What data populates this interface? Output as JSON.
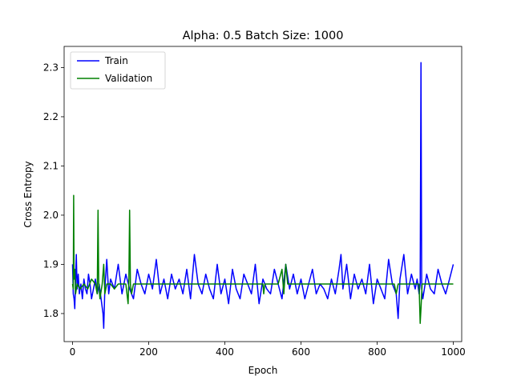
{
  "chart_data": {
    "type": "line",
    "title": "Alpha: 0.5 Batch Size: 1000",
    "xlabel": "Epoch",
    "ylabel": "Cross Entropy",
    "xlim": [
      -22,
      1022
    ],
    "ylim": [
      1.743,
      2.343
    ],
    "xticks": [
      0,
      200,
      400,
      600,
      800,
      1000
    ],
    "yticks": [
      1.8,
      1.9,
      2.0,
      2.1,
      2.2,
      2.3
    ],
    "xtick_labels": [
      "0",
      "200",
      "400",
      "600",
      "800",
      "1000"
    ],
    "ytick_labels": [
      "1.8",
      "1.9",
      "2.0",
      "2.1",
      "2.2",
      "2.3"
    ],
    "grid": false,
    "legend": "top-left",
    "series": [
      {
        "name": "Train",
        "color": "#0000ff",
        "x": [
          0,
          2,
          4,
          6,
          8,
          10,
          12,
          15,
          18,
          22,
          26,
          30,
          34,
          38,
          42,
          46,
          50,
          55,
          60,
          65,
          70,
          75,
          80,
          82,
          85,
          90,
          95,
          100,
          110,
          120,
          130,
          140,
          150,
          160,
          170,
          180,
          190,
          200,
          210,
          220,
          230,
          240,
          250,
          260,
          270,
          280,
          290,
          300,
          310,
          320,
          330,
          340,
          350,
          360,
          370,
          380,
          390,
          400,
          410,
          420,
          430,
          440,
          450,
          460,
          470,
          480,
          490,
          500,
          510,
          520,
          530,
          540,
          550,
          560,
          570,
          580,
          590,
          600,
          610,
          620,
          630,
          640,
          650,
          660,
          670,
          680,
          690,
          700,
          705,
          710,
          720,
          730,
          740,
          750,
          760,
          770,
          780,
          790,
          800,
          810,
          820,
          830,
          840,
          850,
          855,
          860,
          870,
          880,
          890,
          900,
          905,
          910,
          913,
          915,
          917,
          920,
          930,
          940,
          950,
          960,
          970,
          980,
          990,
          1000
        ],
        "y": [
          1.9,
          1.84,
          1.83,
          1.81,
          1.87,
          1.92,
          1.85,
          1.88,
          1.84,
          1.86,
          1.83,
          1.87,
          1.85,
          1.84,
          1.88,
          1.86,
          1.83,
          1.85,
          1.87,
          1.84,
          1.86,
          1.83,
          1.8,
          1.77,
          1.85,
          1.91,
          1.84,
          1.87,
          1.85,
          1.9,
          1.84,
          1.88,
          1.85,
          1.83,
          1.89,
          1.86,
          1.84,
          1.88,
          1.85,
          1.91,
          1.84,
          1.87,
          1.83,
          1.88,
          1.85,
          1.87,
          1.84,
          1.89,
          1.83,
          1.92,
          1.86,
          1.84,
          1.88,
          1.85,
          1.83,
          1.9,
          1.84,
          1.87,
          1.82,
          1.89,
          1.85,
          1.83,
          1.88,
          1.86,
          1.84,
          1.9,
          1.82,
          1.87,
          1.85,
          1.84,
          1.89,
          1.86,
          1.83,
          1.9,
          1.85,
          1.88,
          1.84,
          1.87,
          1.83,
          1.86,
          1.89,
          1.84,
          1.86,
          1.85,
          1.83,
          1.87,
          1.84,
          1.89,
          1.92,
          1.85,
          1.9,
          1.83,
          1.88,
          1.85,
          1.87,
          1.84,
          1.9,
          1.82,
          1.87,
          1.85,
          1.83,
          1.91,
          1.86,
          1.84,
          1.79,
          1.87,
          1.92,
          1.84,
          1.88,
          1.85,
          1.87,
          1.84,
          1.86,
          2.31,
          1.85,
          1.83,
          1.88,
          1.85,
          1.84,
          1.89,
          1.86,
          1.84,
          1.87,
          1.9
        ]
      },
      {
        "name": "Validation",
        "color": "#008000",
        "x": [
          0,
          2,
          3,
          4,
          6,
          8,
          12,
          20,
          30,
          40,
          50,
          60,
          65,
          67,
          69,
          72,
          78,
          82,
          85,
          90,
          100,
          110,
          120,
          130,
          140,
          146,
          148,
          150,
          152,
          155,
          160,
          200,
          300,
          400,
          480,
          500,
          502,
          505,
          540,
          550,
          555,
          560,
          565,
          570,
          600,
          700,
          800,
          845,
          850,
          855,
          890,
          900,
          910,
          913,
          915,
          918,
          922,
          950,
          1000
        ],
        "y": [
          1.86,
          1.85,
          2.04,
          1.87,
          1.89,
          1.84,
          1.86,
          1.85,
          1.86,
          1.85,
          1.87,
          1.86,
          1.84,
          2.01,
          1.86,
          1.83,
          1.86,
          1.9,
          1.84,
          1.86,
          1.86,
          1.85,
          1.86,
          1.86,
          1.86,
          1.82,
          1.87,
          2.01,
          1.86,
          1.84,
          1.86,
          1.86,
          1.86,
          1.86,
          1.86,
          1.86,
          1.84,
          1.86,
          1.86,
          1.89,
          1.84,
          1.9,
          1.86,
          1.86,
          1.86,
          1.86,
          1.86,
          1.86,
          1.84,
          1.86,
          1.86,
          1.86,
          1.86,
          1.78,
          1.81,
          1.86,
          1.86,
          1.86,
          1.86
        ]
      }
    ]
  }
}
